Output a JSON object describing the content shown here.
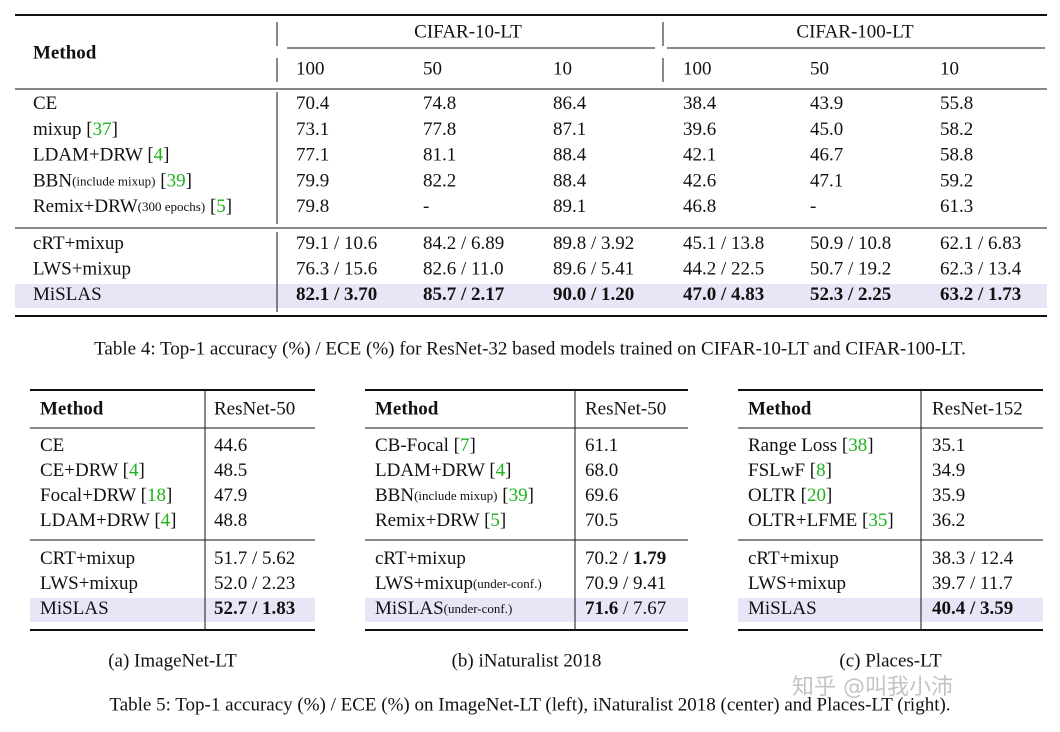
{
  "table4": {
    "header": {
      "method": "Method",
      "groups": [
        "CIFAR-10-LT",
        "CIFAR-100-LT"
      ],
      "ratios": [
        "100",
        "50",
        "10",
        "100",
        "50",
        "10"
      ]
    },
    "groups": [
      {
        "rows": [
          {
            "method": [
              "CE"
            ],
            "cells": [
              [
                "70.4"
              ],
              [
                "74.8"
              ],
              [
                "86.4"
              ],
              [
                "38.4"
              ],
              [
                "43.9"
              ],
              [
                "55.8"
              ]
            ]
          },
          {
            "method": [
              "mixup [",
              {
                "text": "37",
                "cite": true
              },
              "]"
            ],
            "cells": [
              [
                "73.1"
              ],
              [
                "77.8"
              ],
              [
                "87.1"
              ],
              [
                "39.6"
              ],
              [
                "45.0"
              ],
              [
                "58.2"
              ]
            ]
          },
          {
            "method": [
              "LDAM+DRW [",
              {
                "text": "4",
                "cite": true
              },
              "]"
            ],
            "cells": [
              [
                "77.1"
              ],
              [
                "81.1"
              ],
              [
                "88.4"
              ],
              [
                "42.1"
              ],
              [
                "46.7"
              ],
              [
                "58.8"
              ]
            ]
          },
          {
            "method": [
              "BBN",
              {
                "text": "(include mixup)",
                "small": true
              },
              " [",
              {
                "text": "39",
                "cite": true
              },
              "]"
            ],
            "cells": [
              [
                "79.9"
              ],
              [
                "82.2"
              ],
              [
                "88.4"
              ],
              [
                "42.6"
              ],
              [
                "47.1"
              ],
              [
                "59.2"
              ]
            ]
          },
          {
            "method": [
              "Remix+DRW",
              {
                "text": "(300 epochs)",
                "small": true
              },
              " [",
              {
                "text": "5",
                "cite": true
              },
              "]"
            ],
            "cells": [
              [
                "79.8"
              ],
              [
                "-"
              ],
              [
                "89.1"
              ],
              [
                "46.8"
              ],
              [
                "-"
              ],
              [
                "61.3"
              ]
            ]
          }
        ]
      },
      {
        "rows": [
          {
            "method": [
              "cRT+mixup"
            ],
            "cells": [
              [
                "79.1 / 10.6"
              ],
              [
                "84.2 / 6.89"
              ],
              [
                "89.8 / 3.92"
              ],
              [
                "45.1 / 13.8"
              ],
              [
                "50.9 / 10.8"
              ],
              [
                "62.1 / 6.83"
              ]
            ]
          },
          {
            "method": [
              "LWS+mixup"
            ],
            "cells": [
              [
                "76.3 / 15.6"
              ],
              [
                "82.6 / 11.0"
              ],
              [
                "89.6 / 5.41"
              ],
              [
                "44.2 / 22.5"
              ],
              [
                "50.7 / 19.2"
              ],
              [
                "62.3 / 13.4"
              ]
            ]
          },
          {
            "highlight": true,
            "method": [
              "MiSLAS"
            ],
            "cells": [
              [
                {
                  "text": "82.1 / 3.70",
                  "bold": true
                }
              ],
              [
                {
                  "text": "85.7 / 2.17",
                  "bold": true
                }
              ],
              [
                {
                  "text": "90.0 / 1.20",
                  "bold": true
                }
              ],
              [
                {
                  "text": "47.0 / 4.83",
                  "bold": true
                }
              ],
              [
                {
                  "text": "52.3 / 2.25",
                  "bold": true
                }
              ],
              [
                {
                  "text": "63.2 / 1.73",
                  "bold": true
                }
              ]
            ]
          }
        ]
      }
    ],
    "caption": "Table 4: Top-1 accuracy (%) / ECE (%) for ResNet-32 based models trained on CIFAR-10-LT and CIFAR-100-LT."
  },
  "table5": {
    "subtables": [
      {
        "header": {
          "method": "Method",
          "model": "ResNet-50"
        },
        "groups": [
          {
            "rows": [
              {
                "method": [
                  "CE"
                ],
                "cells": [
                  [
                    "44.6"
                  ]
                ]
              },
              {
                "method": [
                  "CE+DRW [",
                  {
                    "text": "4",
                    "cite": true
                  },
                  "]"
                ],
                "cells": [
                  [
                    "48.5"
                  ]
                ]
              },
              {
                "method": [
                  "Focal+DRW [",
                  {
                    "text": "18",
                    "cite": true
                  },
                  "]"
                ],
                "cells": [
                  [
                    "47.9"
                  ]
                ]
              },
              {
                "method": [
                  "LDAM+DRW [",
                  {
                    "text": "4",
                    "cite": true
                  },
                  "]"
                ],
                "cells": [
                  [
                    "48.8"
                  ]
                ]
              }
            ]
          },
          {
            "rows": [
              {
                "method": [
                  "CRT+mixup"
                ],
                "cells": [
                  [
                    "51.7 / 5.62"
                  ]
                ]
              },
              {
                "method": [
                  "LWS+mixup"
                ],
                "cells": [
                  [
                    "52.0 / 2.23"
                  ]
                ]
              },
              {
                "highlight": true,
                "method": [
                  "MiSLAS"
                ],
                "cells": [
                  [
                    {
                      "text": "52.7 / 1.83",
                      "bold": true
                    }
                  ]
                ]
              }
            ]
          }
        ],
        "caption": "(a) ImageNet-LT"
      },
      {
        "header": {
          "method": "Method",
          "model": "ResNet-50"
        },
        "groups": [
          {
            "rows": [
              {
                "method": [
                  "CB-Focal [",
                  {
                    "text": "7",
                    "cite": true
                  },
                  "]"
                ],
                "cells": [
                  [
                    "61.1"
                  ]
                ]
              },
              {
                "method": [
                  "LDAM+DRW [",
                  {
                    "text": "4",
                    "cite": true
                  },
                  "]"
                ],
                "cells": [
                  [
                    "68.0"
                  ]
                ]
              },
              {
                "method": [
                  "BBN",
                  {
                    "text": "(include mixup)",
                    "small": true
                  },
                  " [",
                  {
                    "text": "39",
                    "cite": true
                  },
                  "]"
                ],
                "cells": [
                  [
                    "69.6"
                  ]
                ]
              },
              {
                "method": [
                  "Remix+DRW [",
                  {
                    "text": "5",
                    "cite": true
                  },
                  "]"
                ],
                "cells": [
                  [
                    "70.5"
                  ]
                ]
              }
            ]
          },
          {
            "rows": [
              {
                "method": [
                  "cRT+mixup"
                ],
                "cells": [
                  [
                    "70.2 / ",
                    {
                      "text": "1.79",
                      "bold": true
                    }
                  ]
                ]
              },
              {
                "method": [
                  "LWS+mixup",
                  {
                    "text": "(under-conf.)",
                    "small": true
                  }
                ],
                "cells": [
                  [
                    "70.9 / 9.41"
                  ]
                ]
              },
              {
                "highlight": true,
                "method": [
                  "MiSLAS",
                  {
                    "text": "(under-conf.)",
                    "small": true
                  }
                ],
                "cells": [
                  [
                    {
                      "text": "71.6",
                      "bold": true
                    },
                    " / 7.67"
                  ]
                ]
              }
            ]
          }
        ],
        "caption": "(b) iNaturalist 2018"
      },
      {
        "header": {
          "method": "Method",
          "model": "ResNet-152"
        },
        "groups": [
          {
            "rows": [
              {
                "method": [
                  "Range Loss [",
                  {
                    "text": "38",
                    "cite": true
                  },
                  "]"
                ],
                "cells": [
                  [
                    "35.1"
                  ]
                ]
              },
              {
                "method": [
                  "FSLwF [",
                  {
                    "text": "8",
                    "cite": true
                  },
                  "]"
                ],
                "cells": [
                  [
                    "34.9"
                  ]
                ]
              },
              {
                "method": [
                  "OLTR [",
                  {
                    "text": "20",
                    "cite": true
                  },
                  "]"
                ],
                "cells": [
                  [
                    "35.9"
                  ]
                ]
              },
              {
                "method": [
                  "OLTR+LFME [",
                  {
                    "text": "35",
                    "cite": true
                  },
                  "]"
                ],
                "cells": [
                  [
                    "36.2"
                  ]
                ]
              }
            ]
          },
          {
            "rows": [
              {
                "method": [
                  "cRT+mixup"
                ],
                "cells": [
                  [
                    "38.3 / 12.4"
                  ]
                ]
              },
              {
                "method": [
                  "LWS+mixup"
                ],
                "cells": [
                  [
                    "39.7 / 11.7"
                  ]
                ]
              },
              {
                "highlight": true,
                "method": [
                  "MiSLAS"
                ],
                "cells": [
                  [
                    {
                      "text": "40.4 / 3.59",
                      "bold": true
                    }
                  ]
                ]
              }
            ]
          }
        ],
        "caption": "(c) Places-LT"
      }
    ],
    "caption": "Table 5: Top-1 accuracy (%) / ECE (%) on ImageNet-LT (left), iNaturalist 2018 (center) and Places-LT (right)."
  },
  "watermark": "知乎 @叫我小沛"
}
